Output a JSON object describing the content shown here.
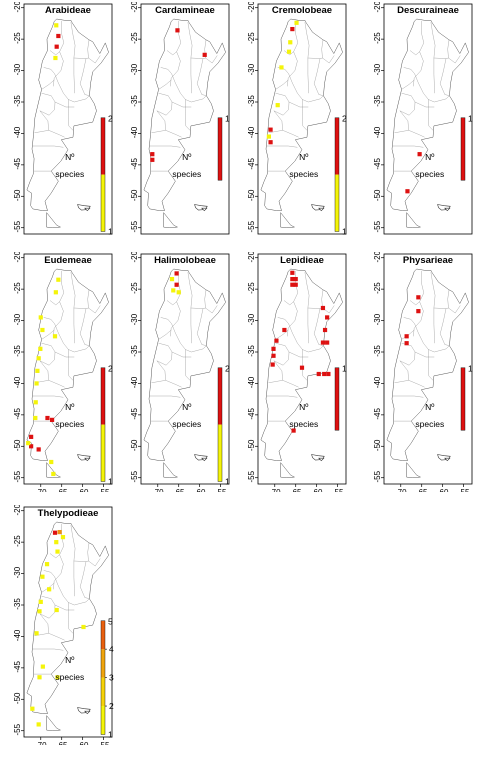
{
  "axes": {
    "x_ticks": [
      "-70",
      "-65",
      "-60",
      "-55"
    ],
    "y_ticks": [
      "-20",
      "-25",
      "-30",
      "-35",
      "-40",
      "-45",
      "-50",
      "-55"
    ]
  },
  "legend": {
    "label_line1": "Nº",
    "label_line2": "species"
  },
  "colors": {
    "high": "#dd1111",
    "mid": "#ef8f10",
    "low": "#f4f40a",
    "outline": "#555555"
  },
  "map_data": {
    "projection": "lon/lat degrees",
    "lon_range": [
      -74,
      -53
    ],
    "lat_range": [
      -56,
      -21
    ]
  },
  "panels": [
    {
      "title": "Arabideae",
      "scale_min": "1",
      "scale_max": "2",
      "scale_labels": [],
      "show_x": false,
      "cells": [
        {
          "lon": -66.3,
          "lat": -22.8,
          "v": "low"
        },
        {
          "lon": -65.8,
          "lat": -24.5,
          "v": "high"
        },
        {
          "lon": -66.2,
          "lat": -26.2,
          "v": "high"
        },
        {
          "lon": -66.5,
          "lat": -28.0,
          "v": "low"
        }
      ]
    },
    {
      "title": "Cardamineae",
      "scale_min": "",
      "scale_max": "1",
      "scale_labels": [],
      "show_x": false,
      "cells": [
        {
          "lon": -65.3,
          "lat": -23.6,
          "v": "high"
        },
        {
          "lon": -58.8,
          "lat": -27.5,
          "v": "high"
        },
        {
          "lon": -71.3,
          "lat": -43.3,
          "v": "high"
        },
        {
          "lon": -71.3,
          "lat": -44.2,
          "v": "high"
        }
      ]
    },
    {
      "title": "Cremolobeae",
      "scale_min": "1",
      "scale_max": "2",
      "scale_labels": [],
      "show_x": false,
      "cells": [
        {
          "lon": -65.8,
          "lat": -23.4,
          "v": "high"
        },
        {
          "lon": -64.8,
          "lat": -22.4,
          "v": "low"
        },
        {
          "lon": -66.3,
          "lat": -25.5,
          "v": "low"
        },
        {
          "lon": -66.6,
          "lat": -27.0,
          "v": "low"
        },
        {
          "lon": -68.4,
          "lat": -29.5,
          "v": "low"
        },
        {
          "lon": -69.3,
          "lat": -35.5,
          "v": "low"
        },
        {
          "lon": -71.0,
          "lat": -39.4,
          "v": "high"
        },
        {
          "lon": -71.4,
          "lat": -40.5,
          "v": "low"
        },
        {
          "lon": -71.0,
          "lat": -41.4,
          "v": "high"
        }
      ]
    },
    {
      "title": "Descuraineae",
      "scale_min": "",
      "scale_max": "1",
      "scale_labels": [],
      "show_x": false,
      "cells": [
        {
          "lon": -65.5,
          "lat": -43.3,
          "v": "high"
        },
        {
          "lon": -68.4,
          "lat": -49.2,
          "v": "high"
        }
      ]
    },
    {
      "title": "Eudemeae",
      "scale_min": "1",
      "scale_max": "2",
      "scale_labels": [],
      "show_x": true,
      "cells": [
        {
          "lon": -65.8,
          "lat": -23.5,
          "v": "low"
        },
        {
          "lon": -66.4,
          "lat": -25.5,
          "v": "low"
        },
        {
          "lon": -70.0,
          "lat": -29.5,
          "v": "low"
        },
        {
          "lon": -69.6,
          "lat": -31.5,
          "v": "low"
        },
        {
          "lon": -66.6,
          "lat": -32.5,
          "v": "low"
        },
        {
          "lon": -70.1,
          "lat": -34.5,
          "v": "low"
        },
        {
          "lon": -70.5,
          "lat": -36.0,
          "v": "low"
        },
        {
          "lon": -70.8,
          "lat": -38.0,
          "v": "low"
        },
        {
          "lon": -71.0,
          "lat": -40.0,
          "v": "low"
        },
        {
          "lon": -71.2,
          "lat": -43.0,
          "v": "low"
        },
        {
          "lon": -71.3,
          "lat": -45.5,
          "v": "low"
        },
        {
          "lon": -68.4,
          "lat": -45.5,
          "v": "high"
        },
        {
          "lon": -67.3,
          "lat": -45.8,
          "v": "high"
        },
        {
          "lon": -72.3,
          "lat": -48.5,
          "v": "high"
        },
        {
          "lon": -72.3,
          "lat": -50.0,
          "v": "high"
        },
        {
          "lon": -70.5,
          "lat": -50.5,
          "v": "high"
        },
        {
          "lon": -73.0,
          "lat": -49.5,
          "v": "low"
        },
        {
          "lon": -67.5,
          "lat": -52.5,
          "v": "low"
        },
        {
          "lon": -67.0,
          "lat": -54.4,
          "v": "low"
        }
      ]
    },
    {
      "title": "Halimolobeae",
      "scale_min": "1",
      "scale_max": "2",
      "scale_labels": [],
      "show_x": true,
      "cells": [
        {
          "lon": -65.5,
          "lat": -22.5,
          "v": "high"
        },
        {
          "lon": -66.6,
          "lat": -23.4,
          "v": "low"
        },
        {
          "lon": -65.5,
          "lat": -24.3,
          "v": "high"
        },
        {
          "lon": -66.3,
          "lat": -25.2,
          "v": "low"
        },
        {
          "lon": -65.0,
          "lat": -25.5,
          "v": "low"
        }
      ]
    },
    {
      "title": "Lepidieae",
      "scale_min": "",
      "scale_max": "1",
      "scale_labels": [],
      "show_x": true,
      "cells": [
        {
          "lon": -65.8,
          "lat": -22.4,
          "v": "high"
        },
        {
          "lon": -65.8,
          "lat": -23.4,
          "v": "high"
        },
        {
          "lon": -65.0,
          "lat": -23.4,
          "v": "high"
        },
        {
          "lon": -65.8,
          "lat": -24.3,
          "v": "high"
        },
        {
          "lon": -65.0,
          "lat": -24.3,
          "v": "high"
        },
        {
          "lon": -58.5,
          "lat": -28.0,
          "v": "high"
        },
        {
          "lon": -57.5,
          "lat": -29.5,
          "v": "high"
        },
        {
          "lon": -58.0,
          "lat": -31.5,
          "v": "high"
        },
        {
          "lon": -58.5,
          "lat": -33.5,
          "v": "high"
        },
        {
          "lon": -57.5,
          "lat": -33.5,
          "v": "high"
        },
        {
          "lon": -67.7,
          "lat": -31.5,
          "v": "high"
        },
        {
          "lon": -69.6,
          "lat": -33.2,
          "v": "high"
        },
        {
          "lon": -70.3,
          "lat": -34.5,
          "v": "high"
        },
        {
          "lon": -70.3,
          "lat": -35.6,
          "v": "high"
        },
        {
          "lon": -70.5,
          "lat": -37.0,
          "v": "high"
        },
        {
          "lon": -63.5,
          "lat": -37.5,
          "v": "high"
        },
        {
          "lon": -59.5,
          "lat": -38.5,
          "v": "high"
        },
        {
          "lon": -58.2,
          "lat": -38.5,
          "v": "high"
        },
        {
          "lon": -57.2,
          "lat": -38.5,
          "v": "high"
        },
        {
          "lon": -65.5,
          "lat": -47.5,
          "v": "high"
        }
      ]
    },
    {
      "title": "Physarieae",
      "scale_min": "",
      "scale_max": "1",
      "scale_labels": [],
      "show_x": true,
      "cells": [
        {
          "lon": -65.8,
          "lat": -26.3,
          "v": "high"
        },
        {
          "lon": -65.8,
          "lat": -28.5,
          "v": "high"
        },
        {
          "lon": -68.6,
          "lat": -32.5,
          "v": "high"
        },
        {
          "lon": -68.6,
          "lat": -33.6,
          "v": "high"
        }
      ]
    },
    {
      "title": "Thelypodieae",
      "scale_min": "1",
      "scale_max": "5",
      "scale_labels": [
        "2",
        "3",
        "4"
      ],
      "show_x": true,
      "cells": [
        {
          "lon": -66.6,
          "lat": -23.5,
          "v": "high"
        },
        {
          "lon": -65.5,
          "lat": -23.4,
          "v": "mid"
        },
        {
          "lon": -64.7,
          "lat": -24.2,
          "v": "low"
        },
        {
          "lon": -66.3,
          "lat": -25.0,
          "v": "low"
        },
        {
          "lon": -66.0,
          "lat": -26.5,
          "v": "low"
        },
        {
          "lon": -68.5,
          "lat": -28.5,
          "v": "low"
        },
        {
          "lon": -69.6,
          "lat": -30.5,
          "v": "low"
        },
        {
          "lon": -68.0,
          "lat": -32.5,
          "v": "low"
        },
        {
          "lon": -70.0,
          "lat": -34.5,
          "v": "low"
        },
        {
          "lon": -70.3,
          "lat": -36.0,
          "v": "low"
        },
        {
          "lon": -66.2,
          "lat": -35.8,
          "v": "low"
        },
        {
          "lon": -71.0,
          "lat": -39.5,
          "v": "low"
        },
        {
          "lon": -59.8,
          "lat": -38.5,
          "v": "low"
        },
        {
          "lon": -69.5,
          "lat": -44.8,
          "v": "low"
        },
        {
          "lon": -66.0,
          "lat": -46.5,
          "v": "low"
        },
        {
          "lon": -70.3,
          "lat": -46.5,
          "v": "low"
        },
        {
          "lon": -72.0,
          "lat": -51.5,
          "v": "low"
        },
        {
          "lon": -70.5,
          "lat": -54.0,
          "v": "low"
        }
      ]
    }
  ]
}
